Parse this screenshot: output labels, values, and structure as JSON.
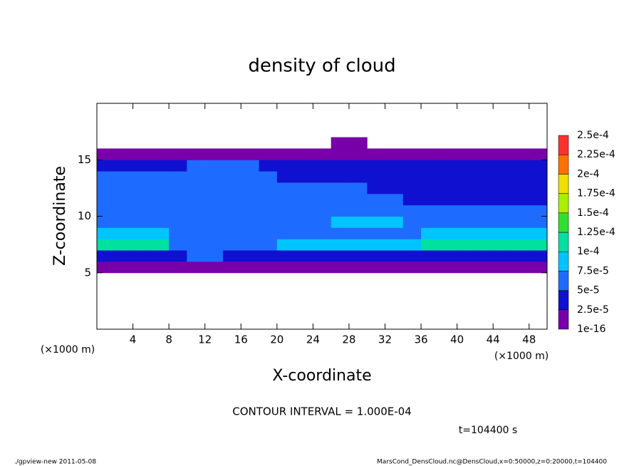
{
  "chart_data": {
    "type": "contour",
    "title": "density of cloud",
    "x_label": "X-coordinate",
    "y_label": "Z-coordinate",
    "x_unit": "(×1000 m)",
    "x_unit_right": "(×1000 m)",
    "contour_note": "CONTOUR INTERVAL = 1.000E-04",
    "time_label": "t=104400 s",
    "footer_left": "./gpview-new  2011-05-08",
    "footer_right": "MarsCond_DensCloud.nc@DensCloud,x=0:50000,z=0:20000,t=104400",
    "xlim": [
      0,
      50
    ],
    "ylim": [
      0,
      20
    ],
    "xticks": [
      4,
      8,
      12,
      16,
      20,
      24,
      28,
      32,
      36,
      40,
      44,
      48
    ],
    "yticks": [
      5,
      10,
      15
    ],
    "x": [
      1,
      3,
      5,
      7,
      9,
      11,
      13,
      15,
      17,
      19,
      21,
      23,
      25,
      27,
      29,
      31,
      33,
      35,
      37,
      39,
      41,
      43,
      45,
      47,
      49
    ],
    "y": [
      5.5,
      6.5,
      7.5,
      8.5,
      9.5,
      10.5,
      11.5,
      12.5,
      13.5,
      14.5,
      15.5,
      16.5
    ],
    "z": [
      [
        1e-05,
        1e-05,
        1e-05,
        1e-05,
        1e-05,
        1e-05,
        1e-05,
        1e-05,
        1e-05,
        1e-05,
        1e-05,
        1e-05,
        1e-05,
        1e-05,
        1e-05,
        1e-05,
        1e-05,
        1e-05,
        1e-05,
        1e-05,
        1e-05,
        1e-05,
        1e-05,
        1e-05,
        1e-05
      ],
      [
        3e-05,
        3e-05,
        3e-05,
        3e-05,
        3e-05,
        5.5e-05,
        5.5e-05,
        3e-05,
        3e-05,
        3e-05,
        3e-05,
        3e-05,
        3e-05,
        3e-05,
        3e-05,
        3e-05,
        3e-05,
        3e-05,
        3e-05,
        3e-05,
        3e-05,
        3e-05,
        3e-05,
        3e-05,
        3e-05
      ],
      [
        0.00011,
        0.00011,
        0.00011,
        0.00011,
        6e-05,
        6e-05,
        6e-05,
        6e-05,
        6e-05,
        6e-05,
        8e-05,
        8e-05,
        8e-05,
        8e-05,
        8e-05,
        8e-05,
        8e-05,
        8e-05,
        0.000105,
        0.000105,
        0.000105,
        0.000105,
        0.000105,
        0.000105,
        0.000105
      ],
      [
        9e-05,
        9e-05,
        9e-05,
        9e-05,
        7e-05,
        7e-05,
        7e-05,
        7e-05,
        7e-05,
        7e-05,
        7e-05,
        7e-05,
        7e-05,
        7e-05,
        7e-05,
        7e-05,
        7e-05,
        7e-05,
        9e-05,
        9e-05,
        9e-05,
        9e-05,
        9e-05,
        9e-05,
        9e-05
      ],
      [
        6e-05,
        6e-05,
        6e-05,
        6e-05,
        6e-05,
        6e-05,
        6e-05,
        6e-05,
        6e-05,
        6e-05,
        6e-05,
        6e-05,
        6e-05,
        8e-05,
        8e-05,
        8e-05,
        8e-05,
        6.5e-05,
        6.5e-05,
        6.5e-05,
        6.5e-05,
        6.5e-05,
        6.5e-05,
        6.5e-05,
        6.5e-05
      ],
      [
        5.5e-05,
        5.5e-05,
        5.5e-05,
        5.5e-05,
        5.5e-05,
        5.5e-05,
        5.5e-05,
        5.5e-05,
        5.5e-05,
        5.5e-05,
        5.5e-05,
        5.5e-05,
        5.5e-05,
        5.5e-05,
        5.5e-05,
        5.5e-05,
        5.5e-05,
        5.5e-05,
        5.5e-05,
        5.5e-05,
        5.5e-05,
        5.5e-05,
        5.5e-05,
        5.5e-05,
        5.5e-05
      ],
      [
        5e-05,
        5e-05,
        5e-05,
        5e-05,
        5e-05,
        5e-05,
        5e-05,
        5e-05,
        5e-05,
        5e-05,
        5e-05,
        5e-05,
        5e-05,
        5e-05,
        5e-05,
        5e-05,
        5e-05,
        4e-05,
        4e-05,
        4e-05,
        4e-05,
        4e-05,
        4e-05,
        4e-05,
        4e-05
      ],
      [
        6e-05,
        6e-05,
        6e-05,
        6e-05,
        6e-05,
        6e-05,
        6e-05,
        6e-05,
        6e-05,
        6e-05,
        6e-05,
        6e-05,
        6e-05,
        6e-05,
        6e-05,
        3.5e-05,
        3.5e-05,
        3.5e-05,
        3.5e-05,
        3.5e-05,
        3.5e-05,
        3.5e-05,
        3.5e-05,
        3.5e-05,
        3.5e-05
      ],
      [
        5.5e-05,
        5.5e-05,
        5.5e-05,
        5.5e-05,
        5.5e-05,
        5.5e-05,
        5.5e-05,
        5.5e-05,
        5.5e-05,
        5.5e-05,
        3.5e-05,
        3.5e-05,
        3.5e-05,
        3.5e-05,
        3.5e-05,
        3.5e-05,
        3.5e-05,
        3.5e-05,
        3.5e-05,
        3.5e-05,
        3.5e-05,
        3.5e-05,
        3.5e-05,
        3.5e-05,
        3.5e-05
      ],
      [
        4e-05,
        4e-05,
        4e-05,
        4e-05,
        4e-05,
        5.5e-05,
        5.5e-05,
        5.5e-05,
        5.5e-05,
        3.5e-05,
        3.5e-05,
        3.5e-05,
        3.5e-05,
        3.5e-05,
        3.5e-05,
        3.5e-05,
        3.5e-05,
        3.5e-05,
        3.5e-05,
        3.5e-05,
        3.5e-05,
        3.5e-05,
        3.5e-05,
        3.5e-05,
        3.5e-05
      ],
      [
        1e-05,
        1e-05,
        1e-05,
        1e-05,
        1e-05,
        1e-05,
        1e-05,
        1e-05,
        1e-05,
        1e-05,
        1e-05,
        1e-05,
        1e-05,
        1e-05,
        1e-05,
        1e-05,
        1e-05,
        1e-05,
        1e-05,
        1e-05,
        1e-05,
        1e-05,
        1e-05,
        1e-05,
        1e-05
      ],
      [
        null,
        null,
        null,
        null,
        null,
        null,
        null,
        null,
        null,
        null,
        null,
        null,
        null,
        1e-05,
        1e-05,
        null,
        null,
        null,
        null,
        null,
        null,
        null,
        null,
        null,
        null
      ]
    ],
    "levels": [
      1e-16,
      {
        "value": 2.5e-05,
        "label": "2.5e-5"
      },
      {
        "value": 5e-05,
        "label": "5e-5"
      },
      {
        "value": 7.5e-05,
        "label": "7.5e-5"
      },
      {
        "value": 0.0001,
        "label": "1e-4"
      },
      {
        "value": 0.000125,
        "label": "1.25e-4"
      },
      {
        "value": 0.00015,
        "label": "1.5e-4"
      },
      {
        "value": 0.000175,
        "label": "1.75e-4"
      },
      {
        "value": 0.0002,
        "label": "2e-4"
      },
      {
        "value": 0.000225,
        "label": "2.25e-4"
      },
      {
        "value": 0.00025,
        "label": "2.5e-4"
      }
    ],
    "colors": [
      "#7800a8",
      "#1010d0",
      "#1e6cff",
      "#00c4ff",
      "#00e0a0",
      "#30e030",
      "#a8f000",
      "#f0e000",
      "#ff7000",
      "#ff3030"
    ]
  }
}
